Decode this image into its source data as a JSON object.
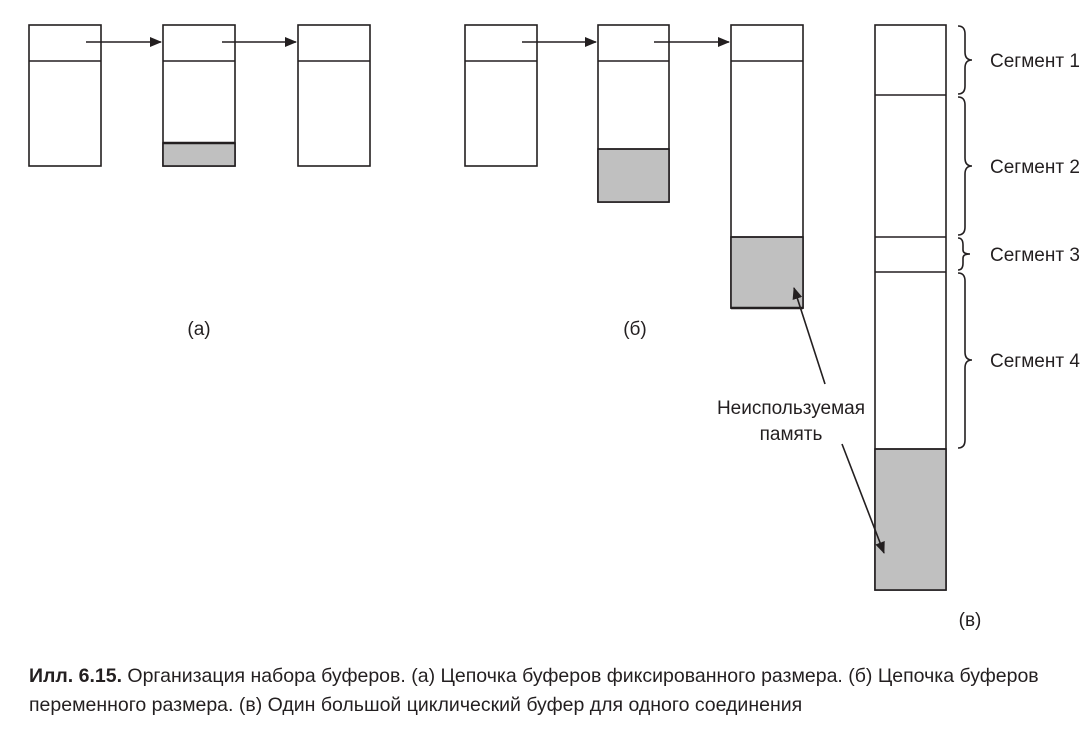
{
  "colors": {
    "ink": "#231f20",
    "unused_fill": "#c0c0c0",
    "background": "#ffffff"
  },
  "panels": {
    "a": {
      "label": "(а)"
    },
    "b": {
      "label": "(б)"
    },
    "c": {
      "label": "(в)",
      "segments": [
        "Сегмент 1",
        "Сегмент 2",
        "Сегмент 3",
        "Сегмент 4"
      ]
    }
  },
  "annotation": {
    "line1": "Неиспользуемая",
    "line2": "память"
  },
  "caption": {
    "number": "Илл. 6.15.",
    "text": " Организация набора буферов. (а) Цепочка буферов фиксированного размера. (б) Цепочка буферов переменного размера. (в) Один большой циклический буфер для одного соединения"
  }
}
